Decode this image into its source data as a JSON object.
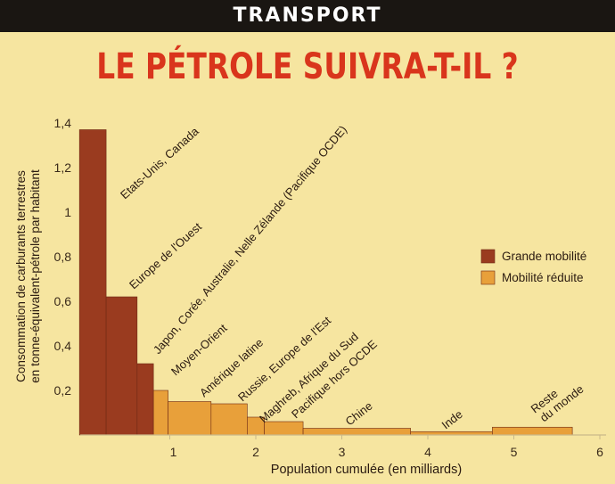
{
  "header": {
    "section": "TRANSPORT"
  },
  "colors": {
    "banner": "#1a1612",
    "title": "#d9351c",
    "background": "#f6e5a0",
    "grande": "#9a3b1f",
    "reduite": "#e8a03a",
    "text": "#3a2a1a"
  },
  "chart_data": {
    "type": "bar",
    "title": "LE PÉTROLE SUIVRA-T-IL ?",
    "ylabel": [
      "Consommation de carburants terrestres",
      "en tonne-équivalent-pétrole par habitant"
    ],
    "xlabel": "Population cumulée (en milliards)",
    "xlim": [
      0,
      6
    ],
    "ylim": [
      0,
      1.4
    ],
    "xticks": [
      {
        "value": 1,
        "label": "1"
      },
      {
        "value": 2,
        "label": "2"
      },
      {
        "value": 3,
        "label": "3"
      },
      {
        "value": 4,
        "label": "4"
      },
      {
        "value": 5,
        "label": "5"
      },
      {
        "value": 6,
        "label": "6"
      }
    ],
    "yticks": [
      {
        "value": 0.2,
        "label": "0,2"
      },
      {
        "value": 0.4,
        "label": "0,4"
      },
      {
        "value": 0.6,
        "label": "0,6"
      },
      {
        "value": 0.8,
        "label": "0,8"
      },
      {
        "value": 1.0,
        "label": "1"
      },
      {
        "value": 1.2,
        "label": "1,2"
      },
      {
        "value": 1.4,
        "label": "1,4"
      }
    ],
    "legend": [
      {
        "key": "grande",
        "label": "Grande mobilité"
      },
      {
        "key": "reduite",
        "label": "Mobilité réduite"
      }
    ],
    "legend_position": "right",
    "bars": [
      {
        "label": "Etats-Unis, Canada",
        "x0": -0.05,
        "x1": 0.26,
        "value": 1.37,
        "group": "grande"
      },
      {
        "label": "Europe de l'Ouest",
        "x0": 0.26,
        "x1": 0.62,
        "value": 0.62,
        "group": "grande"
      },
      {
        "label": "Japon, Corée, Australie, Nelle Zélande (Pacifique OCDE)",
        "x0": 0.62,
        "x1": 0.81,
        "value": 0.32,
        "group": "grande"
      },
      {
        "label": "Moyen-Orient",
        "x0": 0.81,
        "x1": 0.98,
        "value": 0.2,
        "group": "reduite"
      },
      {
        "label": "Amérique latine",
        "x0": 0.98,
        "x1": 1.48,
        "value": 0.15,
        "group": "reduite"
      },
      {
        "label": "Russie, Europe de l'Est",
        "x0": 1.48,
        "x1": 1.9,
        "value": 0.14,
        "group": "reduite"
      },
      {
        "label": "Maghreb, Afrique du Sud",
        "x0": 1.9,
        "x1": 2.1,
        "value": 0.08,
        "group": "reduite"
      },
      {
        "label": "Pacifique hors OCDE",
        "x0": 2.1,
        "x1": 2.55,
        "value": 0.06,
        "group": "reduite"
      },
      {
        "label": "Chine",
        "x0": 2.55,
        "x1": 3.8,
        "value": 0.03,
        "group": "reduite"
      },
      {
        "label": "Inde",
        "x0": 3.8,
        "x1": 4.75,
        "value": 0.015,
        "group": "reduite"
      },
      {
        "label": "Reste du monde",
        "x0": 4.75,
        "x1": 5.68,
        "value": 0.035,
        "group": "reduite"
      }
    ]
  }
}
